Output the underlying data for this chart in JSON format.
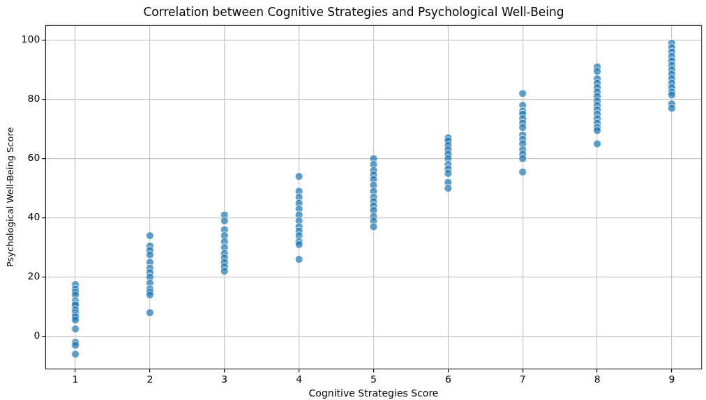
{
  "chart_data": {
    "type": "scatter",
    "title": "Correlation between Cognitive Strategies and Psychological Well-Being",
    "xlabel": "Cognitive Strategies Score",
    "ylabel": "Psychological Well-Being Score",
    "series": [
      {
        "color": "#1f77b4",
        "x": [
          1,
          1,
          1,
          1,
          1,
          1,
          1,
          1,
          1,
          1,
          1,
          1,
          1,
          1,
          1,
          1,
          2,
          2,
          2,
          2,
          2,
          2,
          2,
          2,
          2,
          2,
          2,
          2,
          2,
          3,
          3,
          3,
          3,
          3,
          3,
          3,
          3,
          3,
          3,
          3,
          4,
          4,
          4,
          4,
          4,
          4,
          4,
          4,
          4,
          4,
          4,
          4,
          4,
          5,
          5,
          5,
          5,
          5,
          5,
          5,
          5,
          5,
          5,
          5,
          5,
          5,
          5,
          6,
          6,
          6,
          6,
          6,
          6,
          6,
          6,
          6,
          6,
          6,
          7,
          7,
          7,
          7,
          7,
          7,
          7,
          7,
          7,
          7,
          7,
          7,
          7,
          7,
          8,
          8,
          8,
          8,
          8,
          8,
          8,
          8,
          8,
          8,
          8,
          8,
          8,
          8,
          8,
          8,
          9,
          9,
          9,
          9,
          9,
          9,
          9,
          9,
          9,
          9,
          9,
          9,
          9,
          9,
          9
        ],
        "values": [
          17.5,
          16,
          15,
          14,
          12,
          11,
          10.5,
          9,
          8,
          7,
          6.5,
          5.5,
          2.5,
          -2,
          -3,
          -6,
          34,
          30.5,
          29,
          27.5,
          25,
          23,
          21.5,
          20,
          18,
          16,
          15,
          14,
          8,
          41,
          39,
          36,
          34,
          32,
          30,
          28,
          26.5,
          25,
          23.5,
          22,
          54,
          49,
          47,
          45,
          43,
          41,
          39,
          37,
          35.5,
          34,
          32,
          31,
          26,
          60,
          58,
          56,
          54.5,
          53,
          51,
          49,
          47,
          45.5,
          44,
          42.5,
          40.5,
          39,
          37,
          67,
          66,
          64.5,
          63,
          61.5,
          60,
          58,
          56.5,
          55,
          52,
          50,
          82,
          78,
          76,
          75,
          73.5,
          72,
          70.5,
          68,
          66.5,
          65,
          63,
          61.5,
          60,
          55.5,
          91,
          89.5,
          87,
          85.5,
          84,
          82.5,
          81,
          79.5,
          78,
          76.5,
          75,
          73.5,
          72,
          70.5,
          69.5,
          65,
          99,
          97.5,
          96,
          94.5,
          93,
          91.5,
          90,
          88.5,
          87,
          85.5,
          84,
          82.5,
          81.5,
          78.5,
          77
        ]
      }
    ],
    "xlim": [
      0.6,
      9.4
    ],
    "xticks": [
      1,
      2,
      3,
      4,
      5,
      6,
      7,
      8,
      9
    ],
    "ylim": [
      -11,
      105
    ],
    "yticks": [
      0,
      20,
      40,
      60,
      80,
      100
    ],
    "grid": true,
    "marker": "circle",
    "legend": false
  }
}
